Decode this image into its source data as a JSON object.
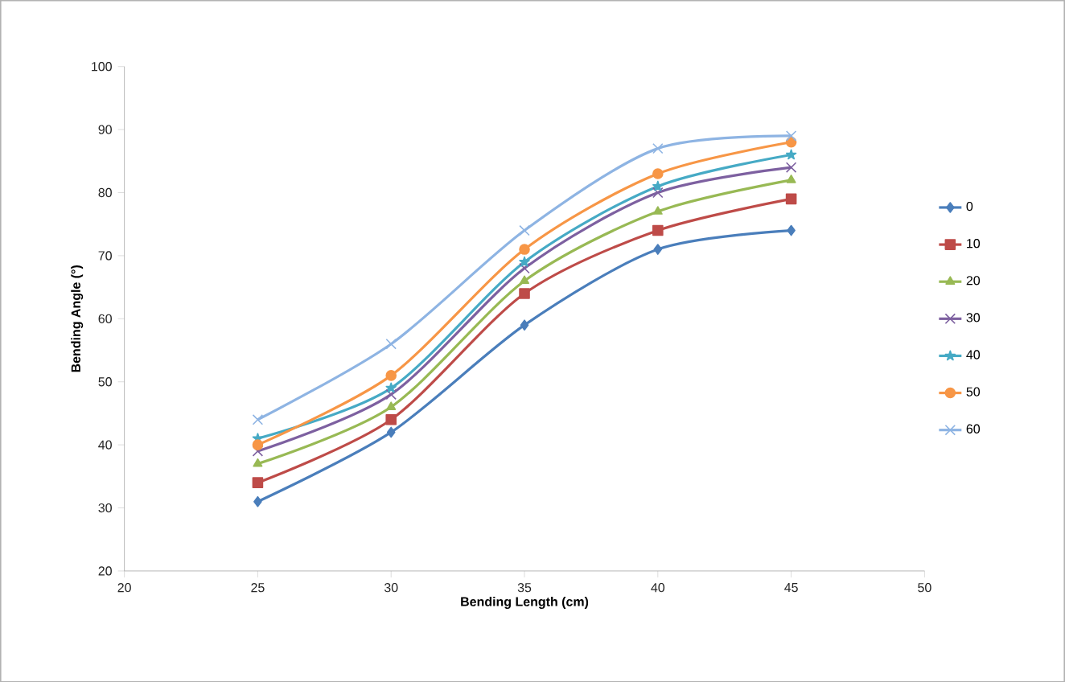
{
  "chart_data": {
    "type": "line",
    "xlabel": "Bending Length (cm)",
    "ylabel": "Bending Angle (°)",
    "xlim": [
      20,
      50
    ],
    "xticks": [
      20,
      25,
      30,
      35,
      40,
      45,
      50
    ],
    "ylim": [
      20,
      100
    ],
    "yticks": [
      20,
      30,
      40,
      50,
      60,
      70,
      80,
      90,
      100
    ],
    "x": [
      25,
      30,
      35,
      40,
      45
    ],
    "grid": false,
    "legend": "right",
    "line_style": "solid",
    "series": [
      {
        "name": "0",
        "color": "#4a7ebb",
        "marker": "diamond",
        "values": [
          31,
          42,
          59,
          71,
          74
        ]
      },
      {
        "name": "10",
        "color": "#be4b48",
        "marker": "square",
        "values": [
          34,
          44,
          64,
          74,
          79
        ]
      },
      {
        "name": "20",
        "color": "#98b954",
        "marker": "triangle",
        "values": [
          37,
          46,
          66,
          77,
          82
        ]
      },
      {
        "name": "30",
        "color": "#7d60a0",
        "marker": "cross",
        "values": [
          39,
          48,
          68,
          80,
          84
        ]
      },
      {
        "name": "40",
        "color": "#46aac5",
        "marker": "star",
        "values": [
          41,
          49,
          69,
          81,
          86
        ]
      },
      {
        "name": "50",
        "color": "#f79646",
        "marker": "circle",
        "values": [
          40,
          51,
          71,
          83,
          88
        ]
      },
      {
        "name": "60",
        "color": "#8eb4e3",
        "marker": "cross",
        "values": [
          44,
          56,
          74,
          87,
          89
        ]
      }
    ]
  }
}
